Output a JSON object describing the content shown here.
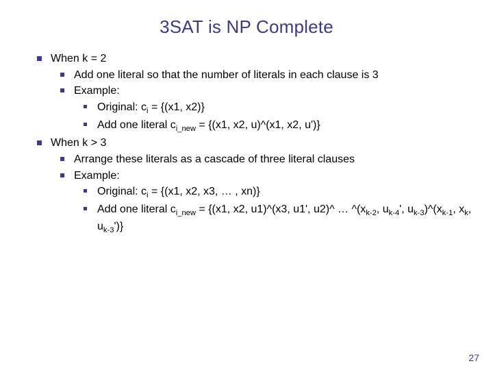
{
  "colors": {
    "accent": "#3a3a92",
    "text": "#000000",
    "background": "#ffffff"
  },
  "typography": {
    "title_fontsize": 26,
    "body_fontsize": 16,
    "pagenum_fontsize": 14,
    "font_family": "Arial"
  },
  "slide": {
    "title": "3SAT is NP Complete",
    "page_number": "27",
    "bullets": {
      "case2_header": "When k = 2",
      "case2_add": "Add one literal so that the number of literals in each clause is 3",
      "case2_example_label": "Example:",
      "case2_orig_prefix": "Original: c",
      "case2_orig_sub": "i",
      "case2_orig_rest": " = {(x1, x2)}",
      "case2_addone_prefix": "Add one literal c",
      "case2_addone_sub": "i_new",
      "case2_addone_rest": " = {(x1, x2, u)^(x1, x2, u')}",
      "case3_header": "When k > 3",
      "case3_arrange": "Arrange these literals as a cascade of three literal clauses",
      "case3_example_label": "Example:",
      "case3_orig_prefix": "Original: c",
      "case3_orig_sub": "i",
      "case3_orig_rest": " = {(x1, x2, x3, … , xn)}",
      "case3_addone_prefix": "Add one literal c",
      "case3_addone_sub": "i_new",
      "case3_addone_rest_a": " = {(x1, x2, u1)^(x3, u1', u2)^ … ^(x",
      "case3_addone_sub_k2": "k-2",
      "case3_addone_comma1": ", u",
      "case3_addone_sub_k4p": "k-4",
      "case3_addone_prime": "', u",
      "case3_addone_sub_k3": "k-3",
      "case3_addone_close": ")^(x",
      "case3_addone_sub_k1": "k-1",
      "case3_addone_comma2": ", x",
      "case3_addone_sub_k": "k",
      "case3_addone_comma3": ", u",
      "case3_addone_sub_k3b": "k-3",
      "case3_addone_end": "')}"
    }
  }
}
